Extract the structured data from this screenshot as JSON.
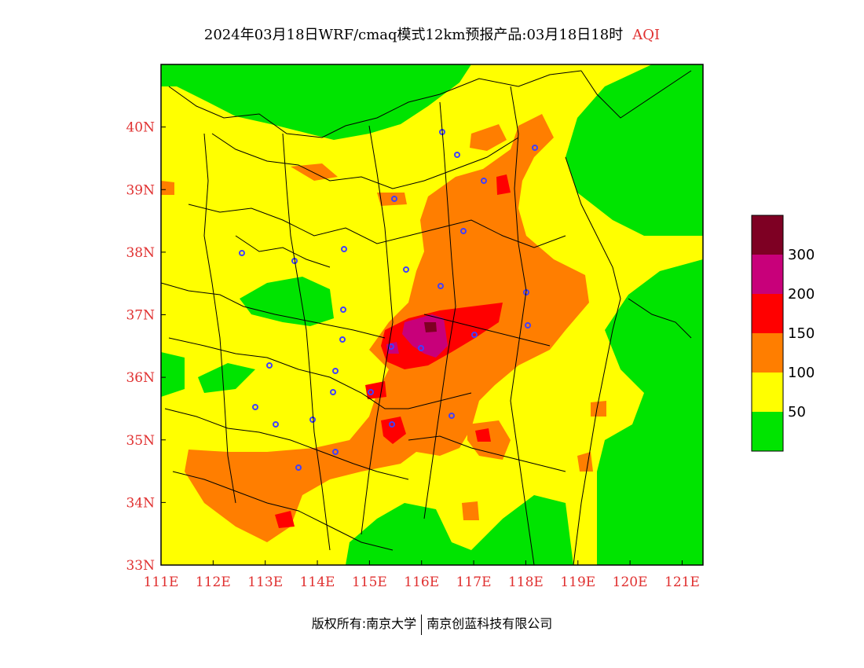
{
  "title": {
    "main": "2024年03月18日WRF/cmaq模式12km预报产品:03月18日18时",
    "tag": "AQI"
  },
  "map": {
    "lon_range": [
      111,
      121.4
    ],
    "lat_range": [
      33,
      41
    ],
    "lon_ticks": [
      "111E",
      "112E",
      "113E",
      "114E",
      "115E",
      "116E",
      "117E",
      "118E",
      "119E",
      "120E",
      "121E"
    ],
    "lat_ticks": [
      "33N",
      "34N",
      "35N",
      "36N",
      "37N",
      "38N",
      "39N",
      "40N"
    ],
    "colors": {
      "good": "#00e400",
      "moderate": "#ffff00",
      "usg": "#ff7e00",
      "unhealthy": "#ff0000",
      "very_unhealthy": "#c8007a",
      "hazardous": "#7e0023",
      "city_marker": "#4040ff",
      "tick_label": "#e03030"
    }
  },
  "legend": {
    "labels": [
      "300",
      "200",
      "150",
      "100",
      "50"
    ],
    "bins": [
      {
        "color": "#7e0023"
      },
      {
        "color": "#c8007a"
      },
      {
        "color": "#ff0000"
      },
      {
        "color": "#ff7e00"
      },
      {
        "color": "#ffff00"
      },
      {
        "color": "#00e400"
      }
    ]
  },
  "footer": {
    "left": "版权所有:南京大学",
    "right": "南京创蓝科技有限公司"
  }
}
